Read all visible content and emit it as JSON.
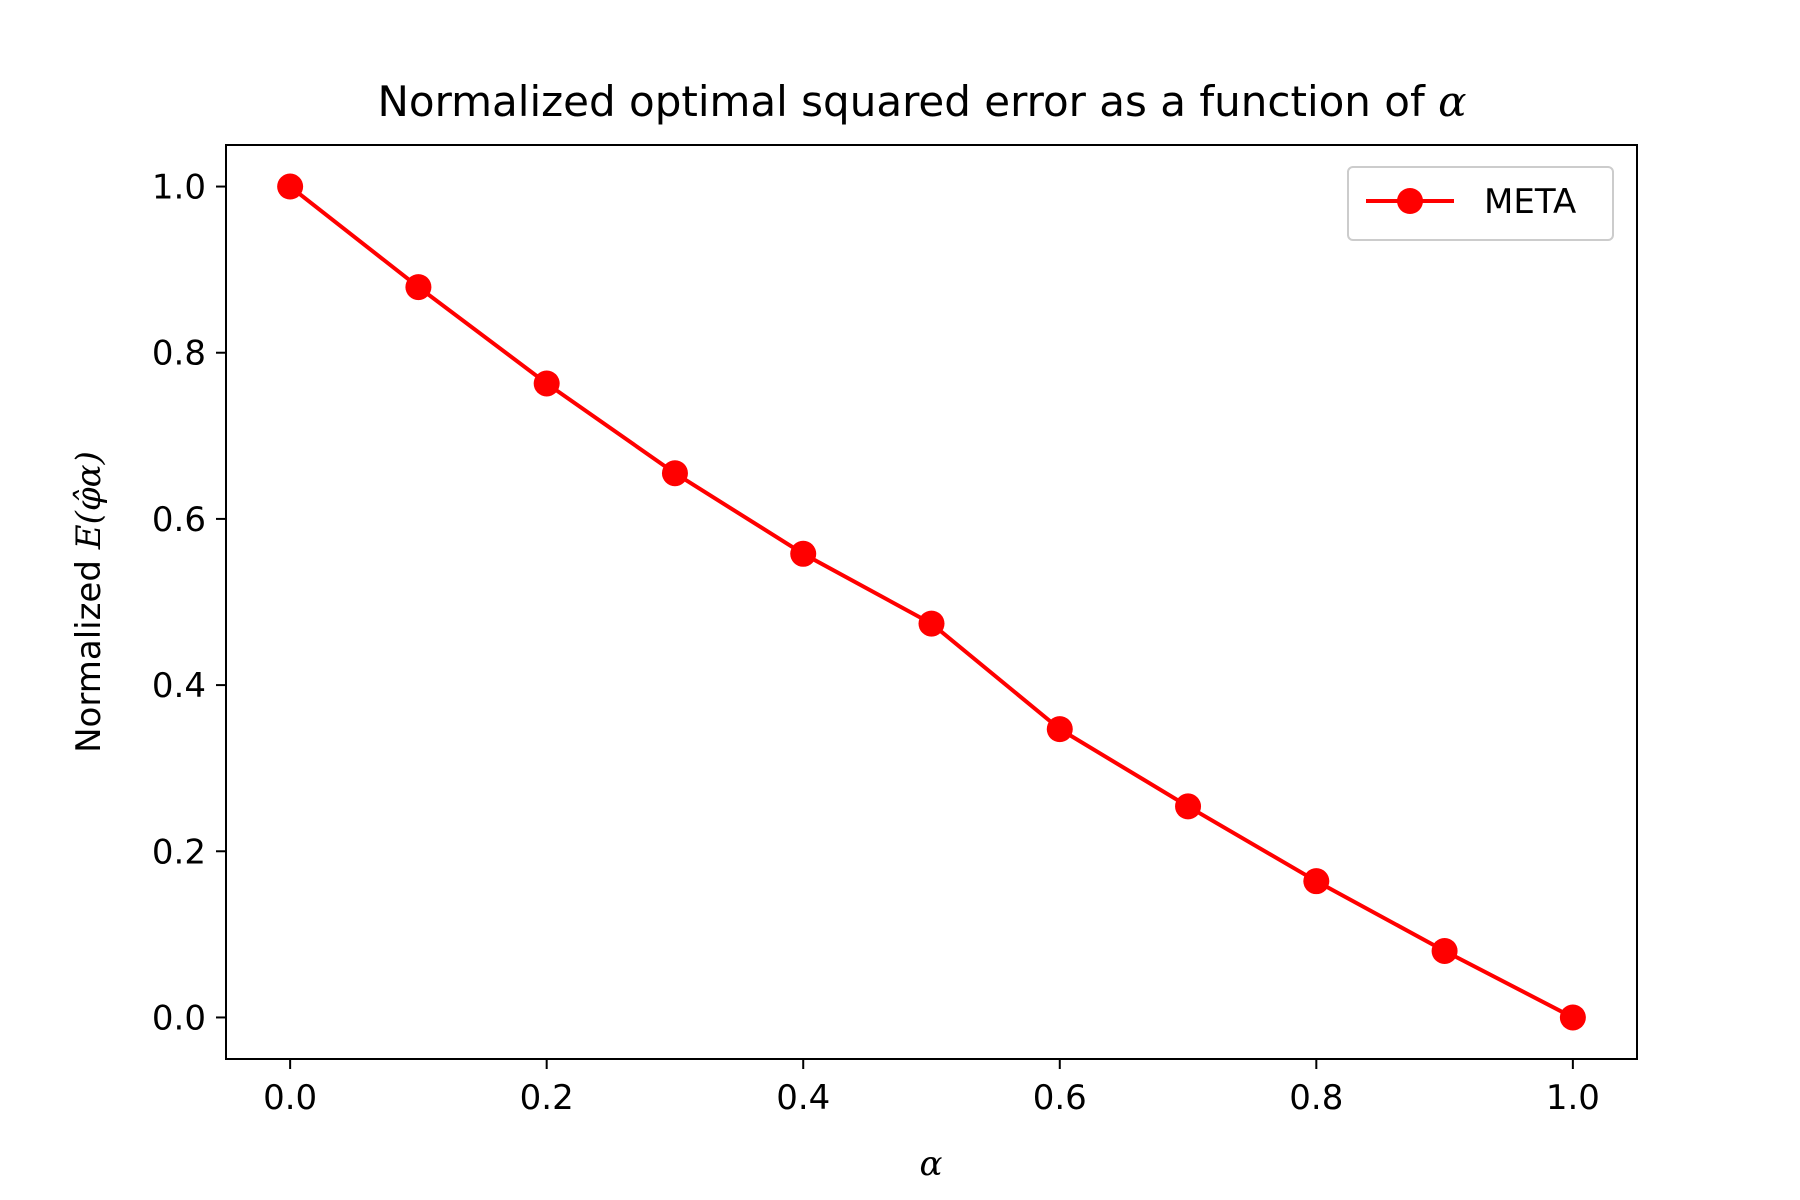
{
  "chart_data": {
    "type": "line",
    "title": "Normalized optimal squared error as a function of",
    "title_symbol": "α",
    "xlabel": "α",
    "ylabel": "Normalized",
    "ylabel_math": "E(φ̂α)",
    "xlim": [
      -0.05,
      1.05
    ],
    "ylim": [
      -0.05,
      1.05
    ],
    "xticks": [
      "0.0",
      "0.2",
      "0.4",
      "0.6",
      "0.8",
      "1.0"
    ],
    "yticks": [
      "0.0",
      "0.2",
      "0.4",
      "0.6",
      "0.8",
      "1.0"
    ],
    "grid": false,
    "legend_position": "upper right",
    "series": [
      {
        "name": "META",
        "color": "#ff0000",
        "marker": "circle",
        "x": [
          0.0,
          0.1,
          0.2,
          0.3,
          0.4,
          0.5,
          0.6,
          0.7,
          0.8,
          0.9,
          1.0
        ],
        "y": [
          1.0,
          0.879,
          0.763,
          0.655,
          0.558,
          0.474,
          0.347,
          0.254,
          0.164,
          0.08,
          0.0
        ]
      }
    ]
  }
}
